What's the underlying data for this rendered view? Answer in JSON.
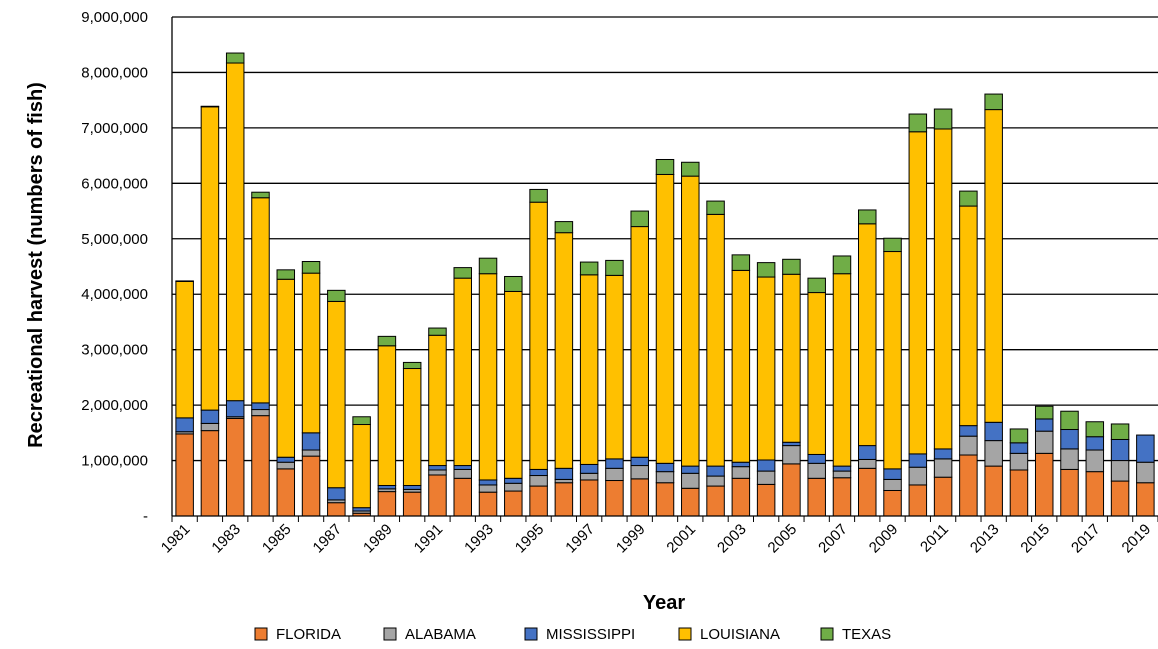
{
  "chart_data": {
    "type": "bar",
    "stacked": true,
    "title": "",
    "xlabel": "Year",
    "ylabel": "Recreational harvest (numbers of fish)",
    "ylim": [
      0,
      9000000
    ],
    "y_ticks": [
      {
        "value": 0,
        "label": "-"
      },
      {
        "value": 1000000,
        "label": "1,000,000"
      },
      {
        "value": 2000000,
        "label": "2,000,000"
      },
      {
        "value": 3000000,
        "label": "3,000,000"
      },
      {
        "value": 4000000,
        "label": "4,000,000"
      },
      {
        "value": 5000000,
        "label": "5,000,000"
      },
      {
        "value": 6000000,
        "label": "6,000,000"
      },
      {
        "value": 7000000,
        "label": "7,000,000"
      },
      {
        "value": 8000000,
        "label": "8,000,000"
      },
      {
        "value": 9000000,
        "label": "9,000,000"
      }
    ],
    "grid": true,
    "legend_position": "bottom",
    "categories": [
      "1981",
      "1982",
      "1983",
      "1984",
      "1985",
      "1986",
      "1987",
      "1988",
      "1989",
      "1990",
      "1991",
      "1992",
      "1993",
      "1994",
      "1995",
      "1996",
      "1997",
      "1998",
      "1999",
      "2000",
      "2001",
      "2002",
      "2003",
      "2004",
      "2005",
      "2006",
      "2007",
      "2008",
      "2009",
      "2010",
      "2011",
      "2012",
      "2013",
      "2014",
      "2015",
      "2016",
      "2017",
      "2018",
      "2019"
    ],
    "x_tick_labels": [
      "1981",
      "1983",
      "1985",
      "1987",
      "1989",
      "1991",
      "1993",
      "1995",
      "1997",
      "1999",
      "2001",
      "2003",
      "2005",
      "2007",
      "2009",
      "2011",
      "2013",
      "2015",
      "2017",
      "2019"
    ],
    "series": [
      {
        "name": "FLORIDA",
        "color": "#ED7D31",
        "values": [
          1480000,
          1540000,
          1760000,
          1810000,
          850000,
          1080000,
          240000,
          50000,
          440000,
          430000,
          740000,
          680000,
          430000,
          450000,
          540000,
          600000,
          650000,
          640000,
          670000,
          600000,
          500000,
          540000,
          680000,
          570000,
          940000,
          680000,
          690000,
          860000,
          460000,
          560000,
          700000,
          1100000,
          900000,
          830000,
          1130000,
          840000,
          800000,
          630000,
          600000
        ]
      },
      {
        "name": "ALABAMA",
        "color": "#A5A5A5",
        "values": [
          40000,
          130000,
          30000,
          110000,
          120000,
          110000,
          50000,
          40000,
          50000,
          50000,
          90000,
          160000,
          130000,
          140000,
          190000,
          60000,
          120000,
          220000,
          240000,
          200000,
          270000,
          180000,
          210000,
          240000,
          330000,
          270000,
          120000,
          160000,
          200000,
          320000,
          330000,
          340000,
          460000,
          300000,
          400000,
          370000,
          390000,
          370000,
          370000
        ]
      },
      {
        "name": "MISSISSIPPI",
        "color": "#4472C4",
        "values": [
          250000,
          240000,
          290000,
          120000,
          90000,
          310000,
          220000,
          60000,
          60000,
          70000,
          80000,
          70000,
          90000,
          90000,
          110000,
          200000,
          160000,
          170000,
          150000,
          150000,
          130000,
          180000,
          80000,
          200000,
          60000,
          160000,
          90000,
          250000,
          190000,
          240000,
          180000,
          190000,
          330000,
          190000,
          220000,
          350000,
          240000,
          380000,
          490000
        ]
      },
      {
        "name": "LOUISIANA",
        "color": "#FFC000",
        "values": [
          2460000,
          5470000,
          6090000,
          3700000,
          3210000,
          2880000,
          3360000,
          1500000,
          2520000,
          2110000,
          2350000,
          3380000,
          3720000,
          3370000,
          4820000,
          4250000,
          3420000,
          3310000,
          4160000,
          5210000,
          5230000,
          4540000,
          3460000,
          3300000,
          3030000,
          2920000,
          3470000,
          4000000,
          3920000,
          5810000,
          5770000,
          3960000,
          5640000,
          0,
          0,
          0,
          0,
          0,
          0
        ]
      },
      {
        "name": "TEXAS",
        "color": "#70AD47",
        "values": [
          10000,
          10000,
          180000,
          100000,
          170000,
          210000,
          200000,
          140000,
          170000,
          110000,
          130000,
          190000,
          280000,
          270000,
          230000,
          200000,
          230000,
          270000,
          280000,
          270000,
          250000,
          240000,
          280000,
          260000,
          270000,
          260000,
          320000,
          250000,
          240000,
          320000,
          360000,
          270000,
          280000,
          250000,
          230000,
          330000,
          270000,
          280000,
          0
        ]
      }
    ]
  }
}
